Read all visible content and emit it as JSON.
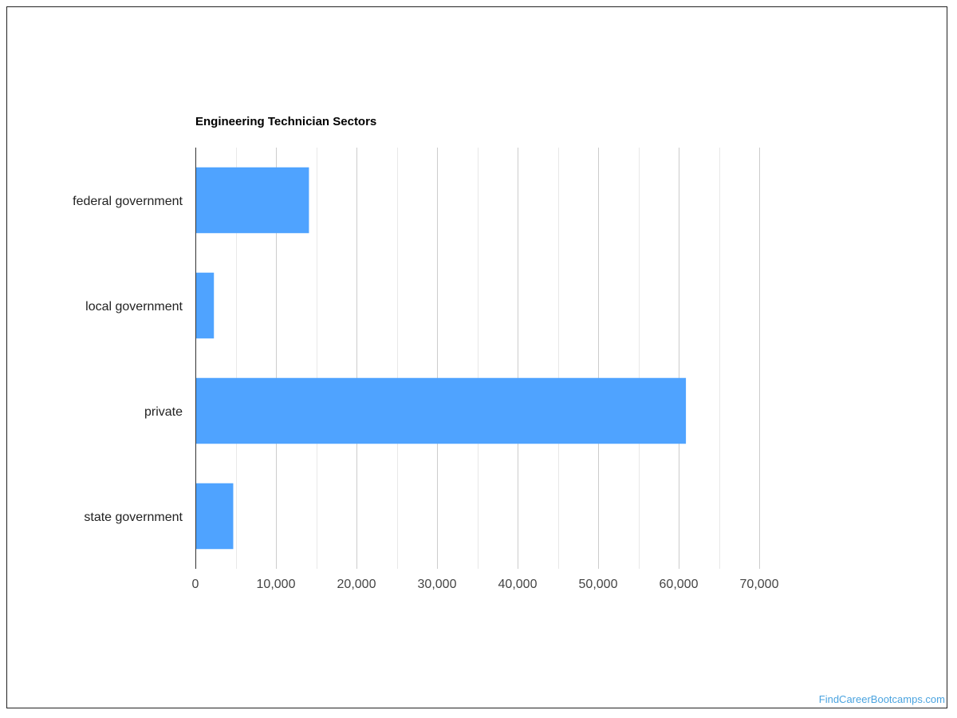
{
  "watermark": "FindCareerBootcamps.com",
  "chart_data": {
    "type": "bar",
    "orientation": "horizontal",
    "title": "Engineering Technician Sectors",
    "xlabel": "",
    "ylabel": "",
    "categories": [
      "federal government",
      "local government",
      "private",
      "state government"
    ],
    "values": [
      14100,
      2300,
      60900,
      4700
    ],
    "xlim": [
      0,
      70000
    ],
    "xticks": [
      0,
      10000,
      20000,
      30000,
      40000,
      50000,
      60000,
      70000
    ],
    "xtick_labels": [
      "0",
      "10,000",
      "20,000",
      "30,000",
      "40,000",
      "50,000",
      "60,000",
      "70,000"
    ],
    "grid": true,
    "legend": "none",
    "bar_color": "#4fa3ff"
  }
}
